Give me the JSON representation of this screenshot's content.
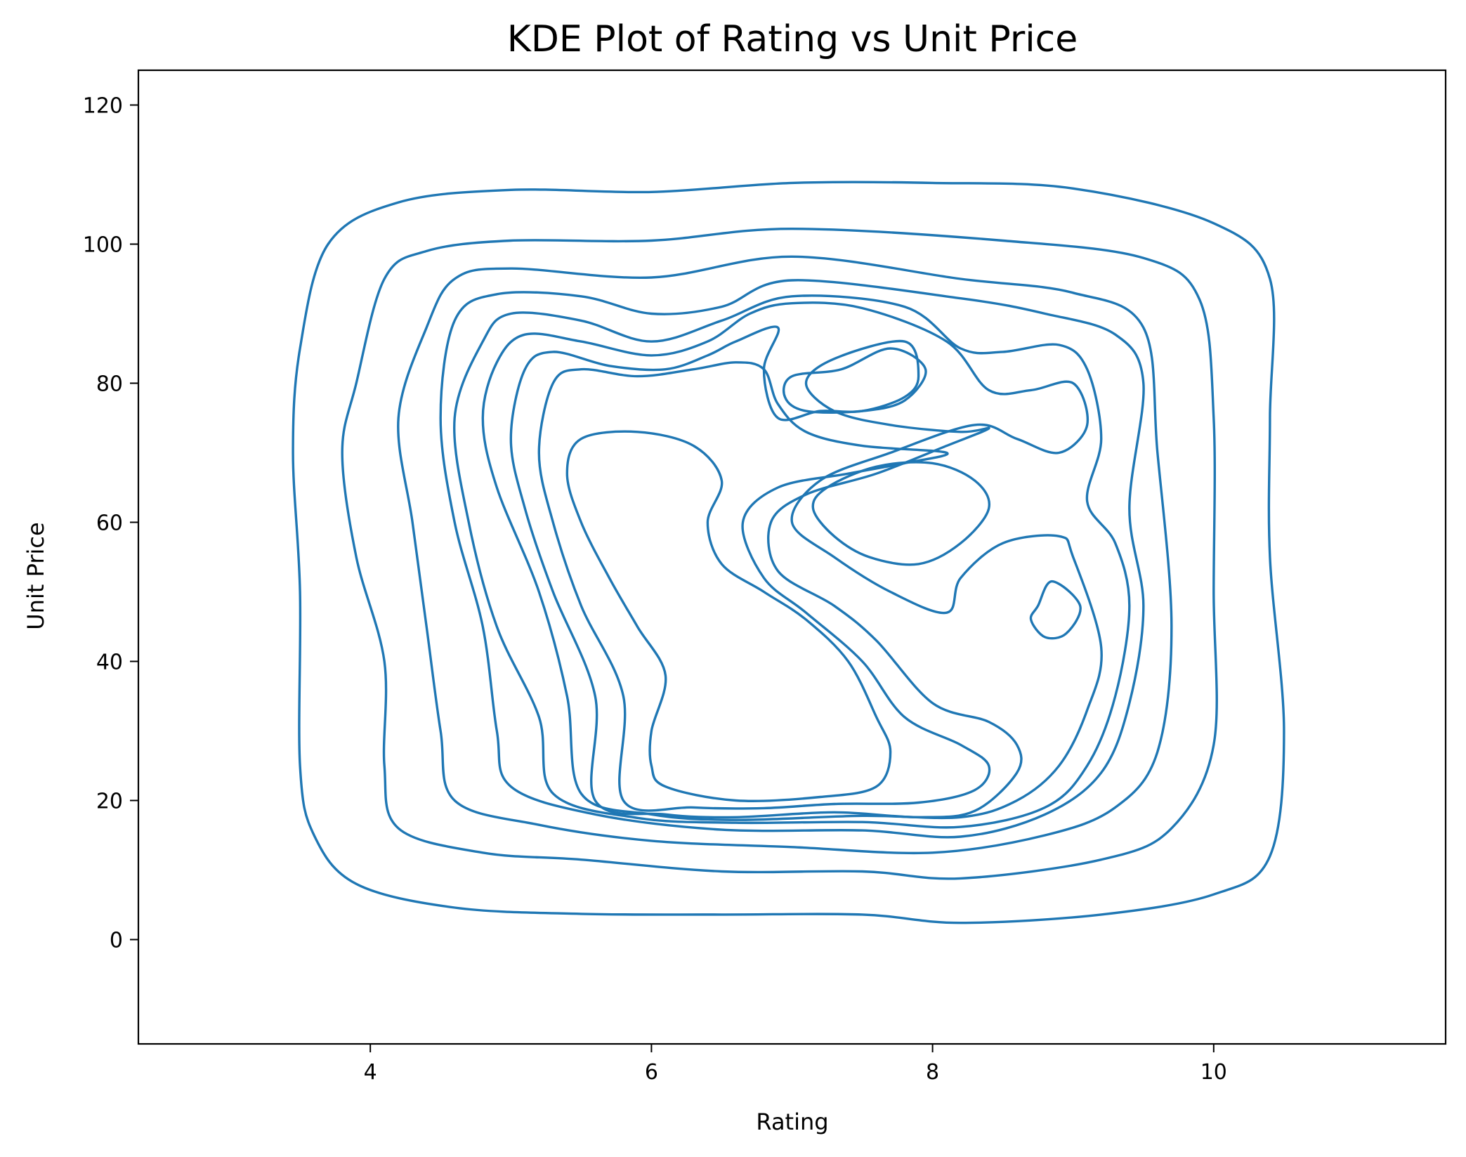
{
  "chart_data": {
    "type": "kde_contour",
    "title": "KDE Plot of Rating vs Unit Price",
    "xlabel": "Rating",
    "ylabel": "Unit Price",
    "xlim": [
      2.35,
      11.65
    ],
    "ylim": [
      -15,
      125
    ],
    "xticks": [
      4,
      6,
      8,
      10
    ],
    "yticks": [
      0,
      20,
      40,
      60,
      80,
      100,
      120
    ],
    "line_color": "#1f77b4",
    "grid": false,
    "legend": "none",
    "contours": [
      {
        "level": 1,
        "points": [
          [
            3.9,
            8
          ],
          [
            4.6,
            4.6
          ],
          [
            5.5,
            3.7
          ],
          [
            6.5,
            3.6
          ],
          [
            7.5,
            3.6
          ],
          [
            8.2,
            2.4
          ],
          [
            9.2,
            3.6
          ],
          [
            10,
            6.5
          ],
          [
            10.4,
            12
          ],
          [
            10.5,
            30
          ],
          [
            10.4,
            55
          ],
          [
            10.4,
            75
          ],
          [
            10.4,
            95
          ],
          [
            10,
            103
          ],
          [
            9,
            108
          ],
          [
            8,
            108.8
          ],
          [
            7,
            108.8
          ],
          [
            6,
            107.5
          ],
          [
            5,
            107.8
          ],
          [
            4.2,
            106
          ],
          [
            3.7,
            100
          ],
          [
            3.5,
            85
          ],
          [
            3.45,
            70
          ],
          [
            3.5,
            50
          ],
          [
            3.5,
            25
          ],
          [
            3.6,
            15
          ]
        ]
      },
      {
        "level": 2,
        "points": [
          [
            4.2,
            16
          ],
          [
            4.8,
            12.5
          ],
          [
            5.5,
            11.5
          ],
          [
            6.5,
            9.8
          ],
          [
            7.5,
            9.8
          ],
          [
            8.2,
            8.8
          ],
          [
            9.2,
            11.5
          ],
          [
            9.7,
            16
          ],
          [
            10,
            28
          ],
          [
            10,
            50
          ],
          [
            10,
            75
          ],
          [
            9.9,
            92
          ],
          [
            9.5,
            98
          ],
          [
            8.5,
            100.5
          ],
          [
            7,
            102.2
          ],
          [
            6,
            100.5
          ],
          [
            5,
            100.5
          ],
          [
            4.4,
            99
          ],
          [
            4.1,
            95
          ],
          [
            3.9,
            80
          ],
          [
            3.8,
            70
          ],
          [
            3.9,
            55
          ],
          [
            4.1,
            40
          ],
          [
            4.1,
            25
          ]
        ]
      },
      {
        "level": 3,
        "points": [
          [
            4.6,
            20
          ],
          [
            5.2,
            16.5
          ],
          [
            6,
            14.2
          ],
          [
            7,
            13.3
          ],
          [
            8,
            12.5
          ],
          [
            8.8,
            15
          ],
          [
            9.3,
            19
          ],
          [
            9.6,
            27
          ],
          [
            9.7,
            45
          ],
          [
            9.6,
            70
          ],
          [
            9.5,
            88
          ],
          [
            9,
            93
          ],
          [
            8.2,
            95
          ],
          [
            7,
            98.2
          ],
          [
            6,
            95.2
          ],
          [
            5,
            96.5
          ],
          [
            4.6,
            95
          ],
          [
            4.4,
            88
          ],
          [
            4.2,
            75
          ],
          [
            4.3,
            60
          ],
          [
            4.4,
            45
          ],
          [
            4.5,
            30
          ]
        ]
      },
      {
        "level": 4,
        "points": [
          [
            5,
            22
          ],
          [
            5.6,
            18
          ],
          [
            6.5,
            15.8
          ],
          [
            7.5,
            15.7
          ],
          [
            8.2,
            14.8
          ],
          [
            8.8,
            18
          ],
          [
            9.2,
            24
          ],
          [
            9.4,
            34
          ],
          [
            9.5,
            48
          ],
          [
            9.4,
            62
          ],
          [
            9.5,
            80
          ],
          [
            9.3,
            87
          ],
          [
            8.8,
            90
          ],
          [
            8.2,
            92.2
          ],
          [
            7,
            94.8
          ],
          [
            6.5,
            91
          ],
          [
            6,
            90
          ],
          [
            5.5,
            92.5
          ],
          [
            4.9,
            92.8
          ],
          [
            4.6,
            89
          ],
          [
            4.5,
            75
          ],
          [
            4.6,
            60
          ],
          [
            4.8,
            45
          ],
          [
            4.9,
            30
          ]
        ]
      },
      {
        "level": 5,
        "points": [
          [
            5.3,
            21
          ],
          [
            5.9,
            17.5
          ],
          [
            6.6,
            16.8
          ],
          [
            7.5,
            16.9
          ],
          [
            8.2,
            16.2
          ],
          [
            8.8,
            19
          ],
          [
            9.1,
            25
          ],
          [
            9.3,
            35
          ],
          [
            9.4,
            48
          ],
          [
            9.3,
            57
          ],
          [
            9.1,
            63
          ],
          [
            9.2,
            72
          ],
          [
            9.1,
            82
          ],
          [
            8.9,
            85.5
          ],
          [
            8.5,
            84.5
          ],
          [
            8.2,
            85
          ],
          [
            7.8,
            91
          ],
          [
            7,
            92.5
          ],
          [
            6.5,
            89
          ],
          [
            6,
            86
          ],
          [
            5.5,
            89
          ],
          [
            5,
            90
          ],
          [
            4.8,
            86
          ],
          [
            4.6,
            75
          ],
          [
            4.7,
            60
          ],
          [
            4.9,
            45
          ],
          [
            5.2,
            32
          ]
        ]
      },
      {
        "level": 6,
        "points": [
          [
            5.5,
            21
          ],
          [
            6,
            18
          ],
          [
            6.6,
            17.2
          ],
          [
            7.5,
            17.8
          ],
          [
            8.2,
            17.6
          ],
          [
            8.6,
            20
          ],
          [
            8.9,
            25
          ],
          [
            9.1,
            33
          ],
          [
            9.2,
            42
          ],
          [
            9,
            55
          ],
          [
            8.9,
            58
          ],
          [
            8.5,
            57
          ],
          [
            8.2,
            52
          ],
          [
            8.1,
            47
          ],
          [
            7.7,
            50
          ],
          [
            7.3,
            55
          ],
          [
            7,
            60
          ],
          [
            7.2,
            66
          ],
          [
            7.7,
            70
          ],
          [
            8.3,
            74
          ],
          [
            8.6,
            72
          ],
          [
            8.9,
            70
          ],
          [
            9.1,
            74
          ],
          [
            9,
            80
          ],
          [
            8.7,
            79
          ],
          [
            8.4,
            79
          ],
          [
            8.1,
            86
          ],
          [
            7.5,
            90.8
          ],
          [
            7,
            91.5
          ],
          [
            6.7,
            90
          ],
          [
            6.4,
            86
          ],
          [
            6,
            84
          ],
          [
            5.5,
            86
          ],
          [
            5.1,
            87
          ],
          [
            4.9,
            83
          ],
          [
            4.8,
            75
          ],
          [
            4.9,
            65
          ],
          [
            5.2,
            50
          ],
          [
            5.4,
            35
          ]
        ]
      },
      {
        "level": 7,
        "points": [
          [
            5.6,
            20
          ],
          [
            6.1,
            18
          ],
          [
            6.6,
            17.6
          ],
          [
            7.3,
            18.3
          ],
          [
            7.9,
            17.6
          ],
          [
            8.3,
            18.5
          ],
          [
            8.6,
            24
          ],
          [
            8.6,
            28
          ],
          [
            8.4,
            31.3
          ],
          [
            8,
            34
          ],
          [
            7.6,
            43
          ],
          [
            7.3,
            48
          ],
          [
            6.9,
            53
          ],
          [
            6.85,
            60
          ],
          [
            7.1,
            64
          ],
          [
            7.6,
            67
          ],
          [
            8.1,
            71
          ],
          [
            8.4,
            73.5
          ],
          [
            8.2,
            73
          ],
          [
            7.7,
            74
          ],
          [
            7.3,
            76
          ],
          [
            7.1,
            80
          ],
          [
            7.3,
            83.5
          ],
          [
            7.8,
            86
          ],
          [
            7.9,
            81
          ],
          [
            7.8,
            78
          ],
          [
            7.5,
            76
          ],
          [
            7.2,
            76
          ],
          [
            6.9,
            75
          ],
          [
            6.8,
            82
          ],
          [
            6.9,
            88
          ],
          [
            6.6,
            86
          ],
          [
            6.4,
            84
          ],
          [
            6.1,
            82
          ],
          [
            5.7,
            82.5
          ],
          [
            5.3,
            84.5
          ],
          [
            5.1,
            82
          ],
          [
            5,
            72
          ],
          [
            5.1,
            62
          ],
          [
            5.3,
            50
          ],
          [
            5.6,
            35
          ]
        ]
      },
      {
        "level": 8,
        "points": [
          [
            5.8,
            20
          ],
          [
            6.3,
            19
          ],
          [
            6.8,
            18.9
          ],
          [
            7.3,
            19.5
          ],
          [
            7.9,
            19.7
          ],
          [
            8.3,
            21.5
          ],
          [
            8.4,
            25
          ],
          [
            8.2,
            28
          ],
          [
            7.8,
            32
          ],
          [
            7.5,
            40
          ],
          [
            7.1,
            47
          ],
          [
            6.8,
            52
          ],
          [
            6.65,
            60
          ],
          [
            6.9,
            65
          ],
          [
            7.4,
            67
          ],
          [
            7.8,
            68.5
          ],
          [
            8.1,
            70
          ],
          [
            7.5,
            71
          ],
          [
            7.1,
            73
          ],
          [
            6.9,
            77
          ],
          [
            6.8,
            82
          ],
          [
            6.6,
            83
          ],
          [
            6.3,
            82
          ],
          [
            5.9,
            81
          ],
          [
            5.5,
            82
          ],
          [
            5.3,
            80
          ],
          [
            5.2,
            70
          ],
          [
            5.3,
            60
          ],
          [
            5.5,
            48
          ],
          [
            5.8,
            35
          ]
        ]
      },
      {
        "level": 9,
        "points": [
          [
            6.1,
            22
          ],
          [
            6.6,
            20
          ],
          [
            7.2,
            20.5
          ],
          [
            7.6,
            22
          ],
          [
            7.7,
            27
          ],
          [
            7.6,
            32
          ],
          [
            7.4,
            40
          ],
          [
            7.1,
            46
          ],
          [
            6.8,
            50
          ],
          [
            6.5,
            54
          ],
          [
            6.4,
            60
          ],
          [
            6.5,
            66
          ],
          [
            6.3,
            71
          ],
          [
            5.9,
            73
          ],
          [
            5.5,
            72
          ],
          [
            5.4,
            67
          ],
          [
            5.5,
            60
          ],
          [
            5.7,
            52
          ],
          [
            5.9,
            45
          ],
          [
            6.1,
            38
          ],
          [
            6,
            30
          ],
          [
            6,
            25
          ]
        ]
      },
      {
        "level": 10,
        "points": [
          [
            7.35,
            82
          ],
          [
            7.7,
            85
          ],
          [
            7.95,
            82
          ],
          [
            7.8,
            77.5
          ],
          [
            7.5,
            76
          ],
          [
            7.1,
            76
          ],
          [
            6.95,
            78
          ],
          [
            7,
            81
          ]
        ]
      },
      {
        "level": 10,
        "points": [
          [
            7.55,
            55
          ],
          [
            7.9,
            54
          ],
          [
            8.2,
            57
          ],
          [
            8.4,
            62
          ],
          [
            8.3,
            66
          ],
          [
            8,
            68.5
          ],
          [
            7.6,
            68
          ],
          [
            7.25,
            65
          ],
          [
            7.15,
            62
          ],
          [
            7.3,
            58
          ]
        ]
      },
      {
        "level": 10,
        "points": [
          [
            8.75,
            48
          ],
          [
            8.85,
            51.5
          ],
          [
            9.05,
            48
          ],
          [
            8.95,
            44
          ],
          [
            8.8,
            43.5
          ],
          [
            8.7,
            46
          ]
        ]
      }
    ]
  }
}
